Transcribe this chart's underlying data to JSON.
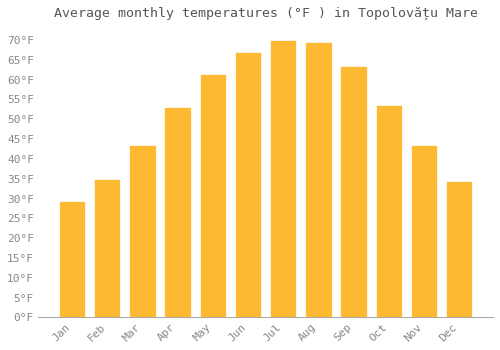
{
  "title": "Average monthly temperatures (°F ) in Topolovățu Mare",
  "months": [
    "Jan",
    "Feb",
    "Mar",
    "Apr",
    "May",
    "Jun",
    "Jul",
    "Aug",
    "Sep",
    "Oct",
    "Nov",
    "Dec"
  ],
  "values": [
    29.5,
    35.0,
    43.5,
    53.0,
    61.5,
    67.0,
    70.0,
    69.5,
    63.5,
    53.5,
    43.5,
    34.5
  ],
  "bar_color": "#FDB931",
  "bar_edge_color": "#FDB931",
  "background_color": "#FFFFFF",
  "grid_color": "#DDDDDD",
  "text_color": "#888888",
  "title_color": "#555555",
  "ylim": [
    0,
    73
  ],
  "yticks": [
    0,
    5,
    10,
    15,
    20,
    25,
    30,
    35,
    40,
    45,
    50,
    55,
    60,
    65,
    70
  ],
  "ytick_labels": [
    "0°F",
    "5°F",
    "10°F",
    "15°F",
    "20°F",
    "25°F",
    "30°F",
    "35°F",
    "40°F",
    "45°F",
    "50°F",
    "55°F",
    "60°F",
    "65°F",
    "70°F"
  ],
  "title_fontsize": 9.5,
  "tick_fontsize": 8,
  "figsize": [
    5.0,
    3.5
  ],
  "dpi": 100
}
